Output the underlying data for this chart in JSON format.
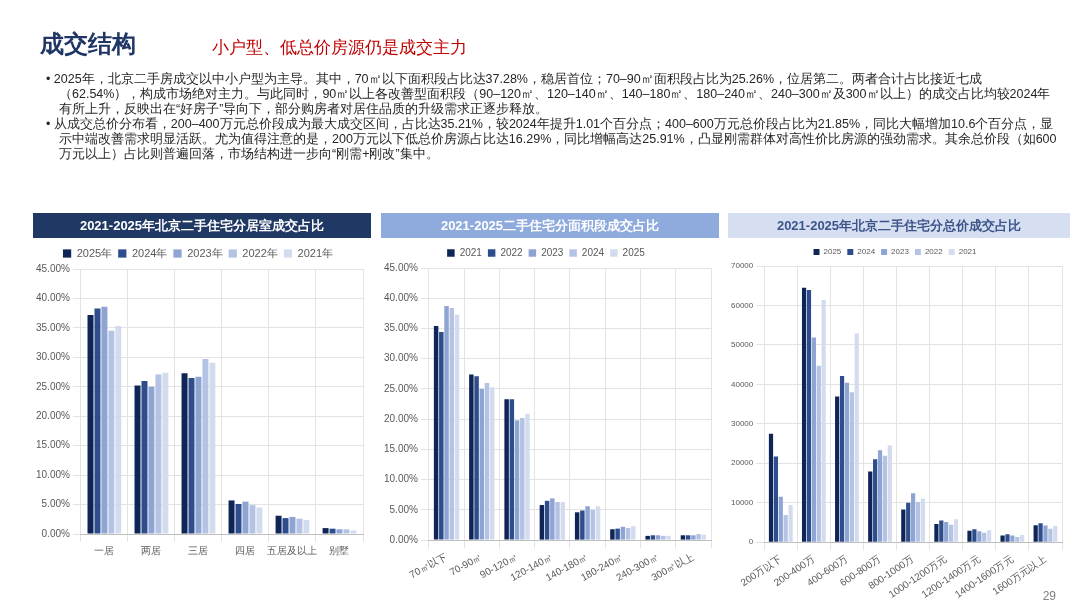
{
  "chart_data": [
    {
      "type": "other",
      "title": "成交结构",
      "subtitle": "小户型、低总价房源仍是成交主力",
      "annotations": [
        "• 2025年，北京二手房成交以中小户型为主导。其中，70㎡以下面积段占比达37.28%，稳居首位；70–90㎡面积段占比为25.26%，位居第二。两者合计占比接近七成（62.54%），构成市场绝对主力。与此同时，90㎡以上各改善型面积段（90–120㎡、120–140㎡、140–180㎡、180–240㎡、240–300㎡及300㎡以上）的成交占比均较2024年有所上升，反映出在“好房子”导向下，部分购房者对居住品质的升级需求正逐步释放。",
        "• 从成交总价分布看，200–400万元总价段成为最大成交区间，占比达35.21%，较2024年提升1.01个百分点；400–600万元总价段占比为21.85%，同比大幅增加10.6个百分点，显示中端改善需求明显活跃。尤为值得注意的是，200万元以下低总价房源占比达16.29%，同比增幅高达25.91%，凸显刚需群体对高性价比房源的强劲需求。其余总价段（如600万元以上）占比则普遍回落，市场结构进一步向“刚需+刚改”集中。",
        "29"
      ]
    },
    {
      "type": "bar",
      "title": "2021-2025年北京二手住宅分居室成交占比",
      "categories": [
        "一居",
        "两居",
        "三居",
        "四居",
        "五居及以上",
        "别墅"
      ],
      "series": [
        {
          "name": "2025年",
          "color": "#0f2557",
          "values": [
            37.2,
            25.2,
            27.3,
            5.7,
            3.1,
            1.0
          ]
        },
        {
          "name": "2024年",
          "color": "#2e4d8c",
          "values": [
            38.3,
            26.0,
            26.5,
            5.1,
            2.7,
            0.9
          ]
        },
        {
          "name": "2023年",
          "color": "#8ea4d2",
          "values": [
            38.6,
            25.0,
            26.7,
            5.5,
            2.9,
            0.8
          ]
        },
        {
          "name": "2022年",
          "color": "#b4c3e4",
          "values": [
            34.5,
            27.1,
            29.7,
            4.9,
            2.6,
            0.8
          ]
        },
        {
          "name": "2021年",
          "color": "#d3dcef",
          "values": [
            35.3,
            27.4,
            29.1,
            4.5,
            2.4,
            0.6
          ]
        }
      ],
      "ylim": [
        0,
        45
      ],
      "yticks": [
        {
          "value": 0,
          "label": "0.00%"
        },
        {
          "value": 5,
          "label": "5.00%"
        },
        {
          "value": 10,
          "label": "10.00%"
        },
        {
          "value": 15,
          "label": "15.00%"
        },
        {
          "value": 20,
          "label": "20.00%"
        },
        {
          "value": 25,
          "label": "25.00%"
        },
        {
          "value": 30,
          "label": "30.00%"
        },
        {
          "value": 35,
          "label": "35.00%"
        },
        {
          "value": 40,
          "label": "40.00%"
        },
        {
          "value": 45,
          "label": "45.00%"
        }
      ],
      "grid": true,
      "legend": "top"
    },
    {
      "type": "bar",
      "title": "2021-2025二手住宅分面积段成交占比",
      "categories": [
        "70㎡以下",
        "70-90㎡",
        "90-120㎡",
        "120-140㎡",
        "140-180㎡",
        "180-240㎡",
        "240-300㎡",
        "300㎡以上"
      ],
      "series": [
        {
          "name": "2021",
          "color": "#0f2557",
          "values": [
            35.4,
            27.4,
            23.3,
            5.8,
            4.6,
            1.8,
            0.7,
            0.8
          ]
        },
        {
          "name": "2022",
          "color": "#2e4d8c",
          "values": [
            34.4,
            27.1,
            23.3,
            6.5,
            4.9,
            1.9,
            0.8,
            0.8
          ]
        },
        {
          "name": "2023",
          "color": "#8ea4d2",
          "values": [
            38.7,
            25.0,
            19.8,
            6.9,
            5.6,
            2.2,
            0.8,
            0.8
          ]
        },
        {
          "name": "2024",
          "color": "#b4c3e4",
          "values": [
            38.4,
            26.0,
            20.2,
            6.3,
            5.0,
            2.0,
            0.7,
            1.0
          ]
        },
        {
          "name": "2025",
          "color": "#d3dcef",
          "values": [
            37.3,
            25.3,
            20.9,
            6.3,
            5.6,
            2.3,
            0.7,
            0.9
          ]
        }
      ],
      "ylim": [
        0,
        45
      ],
      "yticks": [
        {
          "value": 0,
          "label": "0.00%"
        },
        {
          "value": 5,
          "label": "5.00%"
        },
        {
          "value": 10,
          "label": "10.00%"
        },
        {
          "value": 15,
          "label": "15.00%"
        },
        {
          "value": 20,
          "label": "20.00%"
        },
        {
          "value": 25,
          "label": "25.00%"
        },
        {
          "value": 30,
          "label": "30.00%"
        },
        {
          "value": 35,
          "label": "35.00%"
        },
        {
          "value": 40,
          "label": "40.00%"
        },
        {
          "value": 45,
          "label": "45.00%"
        }
      ],
      "grid": true,
      "legend": "top"
    },
    {
      "type": "bar",
      "title": "2021-2025年北京二手住宅分总价成交占比",
      "categories": [
        "200万以下",
        "200-400万",
        "400-600万",
        "600-800万",
        "800-1000万",
        "1000-1200万元",
        "1200-1400万元",
        "1400-1600万元",
        "1600万元以上"
      ],
      "series": [
        {
          "name": "2025",
          "color": "#0f2557",
          "values": [
            27500,
            64500,
            36900,
            17900,
            8300,
            4600,
            2900,
            1700,
            4300
          ]
        },
        {
          "name": "2024",
          "color": "#2e4d8c",
          "values": [
            21700,
            63900,
            42100,
            21000,
            10000,
            5500,
            3300,
            2000,
            4800
          ]
        },
        {
          "name": "2023",
          "color": "#8ea4d2",
          "values": [
            11500,
            51900,
            40400,
            23300,
            12400,
            5100,
            2800,
            1700,
            4200
          ]
        },
        {
          "name": "2022",
          "color": "#b4c3e4",
          "values": [
            6900,
            44700,
            38000,
            21900,
            10200,
            4400,
            2400,
            1300,
            3400
          ]
        },
        {
          "name": "2021",
          "color": "#d3dcef",
          "values": [
            9400,
            61400,
            52900,
            24500,
            11100,
            5800,
            3000,
            1800,
            4100
          ]
        }
      ],
      "ylim": [
        0,
        70000
      ],
      "yticks": [
        0,
        10000,
        20000,
        30000,
        40000,
        50000,
        60000,
        70000
      ],
      "grid": true,
      "legend": "top"
    }
  ]
}
